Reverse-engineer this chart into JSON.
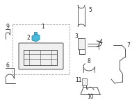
{
  "background_color": "#ffffff",
  "highlight_color": "#4ab8d8",
  "highlight_edge": "#2288aa",
  "line_color": "#555555",
  "fill_color": "#f0f0f0",
  "dash_color": "#aaaaaa",
  "figsize": [
    2.0,
    1.47
  ],
  "dpi": 100
}
